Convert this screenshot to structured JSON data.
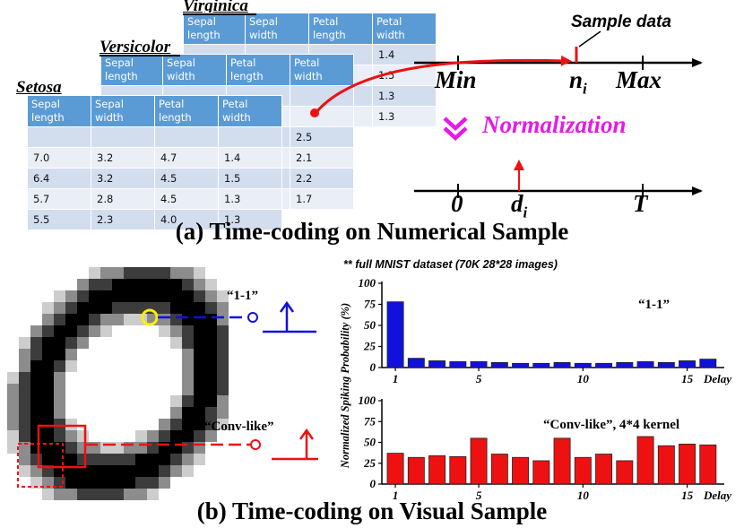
{
  "part_a": {
    "caption": "(a) Time-coding on Numerical Sample",
    "tables": [
      {
        "title": "Virginica",
        "headers": [
          "Sepal length",
          "Sepal width",
          "Petal length",
          "Petal width"
        ],
        "rows": [
          [
            "",
            "",
            "",
            "1.4"
          ],
          [
            "",
            "",
            "",
            "1.5"
          ],
          [
            "",
            "",
            "",
            "1.3"
          ],
          [
            "",
            "",
            "",
            "1.3"
          ]
        ]
      },
      {
        "title": "Versicolor",
        "headers": [
          "Sepal length",
          "Sepal width",
          "Petal length",
          "Petal width"
        ],
        "rows": [
          [
            "",
            "",
            "",
            ""
          ],
          [
            "",
            "",
            "",
            ""
          ],
          [
            "",
            "",
            "",
            "2.5"
          ],
          [
            "",
            "",
            "",
            "2.1"
          ],
          [
            "",
            "",
            "",
            "2.2"
          ],
          [
            "",
            "",
            "",
            "1.7"
          ]
        ]
      },
      {
        "title": "Setosa",
        "headers": [
          "Sepal length",
          "Sepal width",
          "Petal length",
          "Petal width"
        ],
        "rows": [
          [
            "",
            "",
            "",
            ""
          ],
          [
            "7.0",
            "3.2",
            "4.7",
            "1.4"
          ],
          [
            "6.4",
            "3.2",
            "4.5",
            "1.5"
          ],
          [
            "5.7",
            "2.8",
            "4.5",
            "1.3"
          ],
          [
            "5.5",
            "2.3",
            "4.0",
            "1.3"
          ]
        ]
      }
    ],
    "sample_data_label": "Sample data",
    "axis_top": {
      "min": "Min",
      "ni": "n",
      "ni_sub": "i",
      "max": "Max"
    },
    "normalization_label": "Normalization",
    "axis_bottom": {
      "zero": "0",
      "di": "d",
      "di_sub": "i",
      "t": "T"
    },
    "colors": {
      "header": "#5b9bd5",
      "row_odd": "#d2ddee",
      "row_even": "#e9eef7",
      "normalization": "#e619e6",
      "arrow": "#ee1111"
    }
  },
  "part_b": {
    "caption": "(b) Time-coding on Visual Sample",
    "dataset_note": "** full MNIST dataset (70K 28*28 images)",
    "label_1x1": "“1-1”",
    "label_conv": "“Conv-like”",
    "ylabel": "Normalized Spiking Probability (%)",
    "colors": {
      "blue": "#1111dd",
      "red": "#ee1111",
      "yellow_marker": "#ffee00"
    }
  },
  "chart_data": [
    {
      "type": "bar",
      "title": "“1-1”",
      "x": [
        1,
        2,
        3,
        4,
        5,
        6,
        7,
        8,
        9,
        10,
        11,
        12,
        13,
        14,
        15,
        16
      ],
      "values": [
        78,
        11,
        8,
        7,
        7,
        6,
        5,
        5,
        6,
        5,
        5,
        6,
        7,
        6,
        8,
        10
      ],
      "xticks": [
        "1",
        "5",
        "10",
        "15"
      ],
      "xlabel": "Delay",
      "yticks": [
        "0",
        "25",
        "50",
        "75",
        "100"
      ],
      "ylim": [
        0,
        100
      ],
      "color": "#1111dd"
    },
    {
      "type": "bar",
      "title": "“Conv-like”, 4*4 kernel",
      "x": [
        1,
        2,
        3,
        4,
        5,
        6,
        7,
        8,
        9,
        10,
        11,
        12,
        13,
        14,
        15,
        16
      ],
      "values": [
        37,
        32,
        34,
        33,
        55,
        36,
        32,
        28,
        55,
        32,
        36,
        28,
        57,
        46,
        48,
        47
      ],
      "xticks": [
        "1",
        "5",
        "10",
        "15"
      ],
      "xlabel": "Delay",
      "yticks": [
        "0",
        "25",
        "50",
        "75",
        "100"
      ],
      "ylim": [
        0,
        100
      ],
      "color": "#ee1111"
    }
  ]
}
